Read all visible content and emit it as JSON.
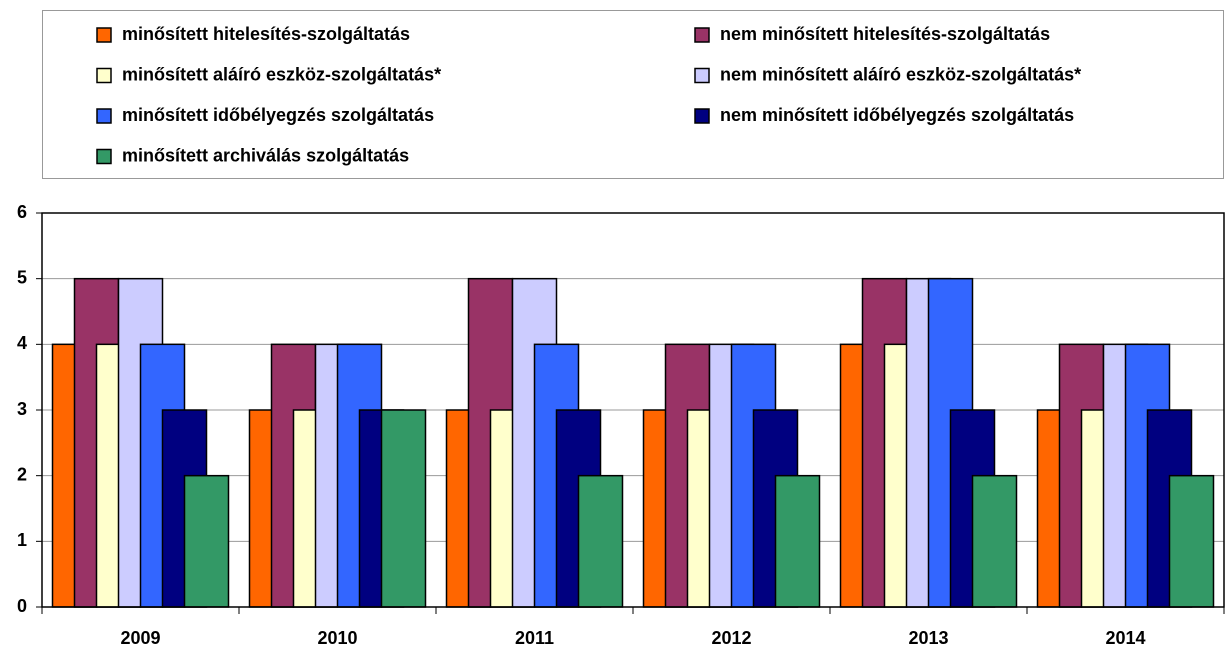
{
  "chart_data": {
    "type": "bar",
    "categories": [
      "2009",
      "2010",
      "2011",
      "2012",
      "2013",
      "2014"
    ],
    "series": [
      {
        "name": "minősített hitelesítés-szolgáltatás",
        "color": "#ff6600",
        "values": [
          4,
          3,
          3,
          3,
          4,
          3
        ]
      },
      {
        "name": "nem minősített hitelesítés-szolgáltatás",
        "color": "#993366",
        "values": [
          5,
          4,
          5,
          4,
          5,
          4
        ]
      },
      {
        "name": "minősített aláíró eszköz-szolgáltatás*",
        "color": "#ffffcc",
        "values": [
          4,
          3,
          3,
          3,
          4,
          3
        ]
      },
      {
        "name": "nem minősített aláíró eszköz-szolgáltatás*",
        "color": "#ccccff",
        "values": [
          5,
          4,
          5,
          4,
          5,
          4
        ]
      },
      {
        "name": "minősített időbélyegzés szolgáltatás",
        "color": "#3366ff",
        "values": [
          4,
          4,
          4,
          4,
          5,
          4
        ]
      },
      {
        "name": "nem minősített időbélyegzés szolgáltatás",
        "color": "#000080",
        "values": [
          3,
          3,
          3,
          3,
          3,
          3
        ]
      },
      {
        "name": "minősített archiválás szolgáltatás",
        "color": "#339966",
        "values": [
          2,
          3,
          2,
          2,
          2,
          2
        ]
      }
    ],
    "ylim": [
      0,
      6
    ],
    "yticks": [
      0,
      1,
      2,
      3,
      4,
      5,
      6
    ],
    "grid": true
  }
}
